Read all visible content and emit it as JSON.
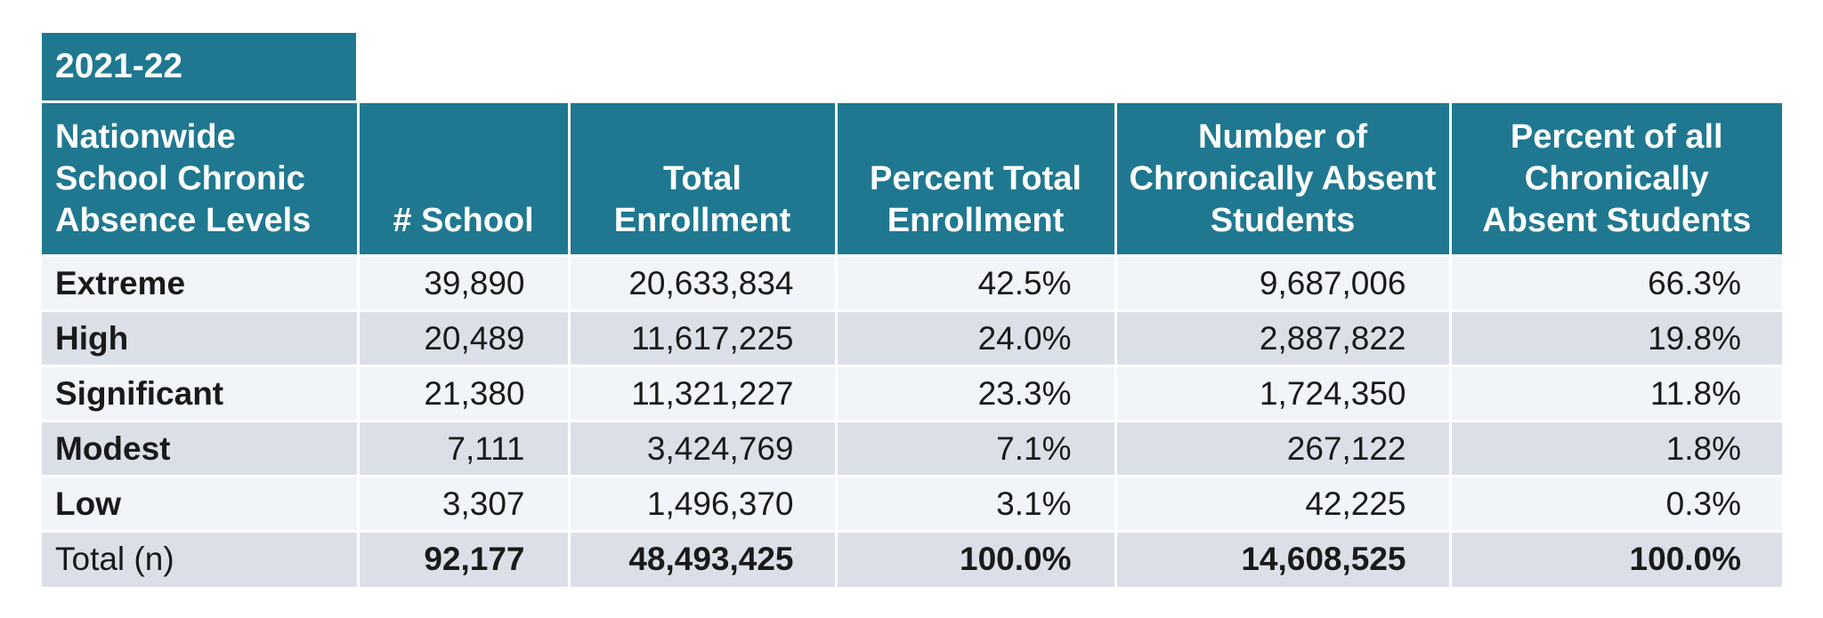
{
  "year": "2021-22",
  "headers": [
    "Nationwide School Chronic Absence Levels",
    "# School",
    "Total Enrollment",
    "Percent Total Enrollment",
    "Number of Chronically Absent Students",
    "Percent of all Chronically Absent Students"
  ],
  "rows": [
    [
      "Extreme",
      "39,890",
      "20,633,834",
      "42.5%",
      "9,687,006",
      "66.3%"
    ],
    [
      "High",
      "20,489",
      "11,617,225",
      "24.0%",
      "2,887,822",
      "19.8%"
    ],
    [
      "Significant",
      "21,380",
      "11,321,227",
      "23.3%",
      "1,724,350",
      "11.8%"
    ],
    [
      "Modest",
      "7,111",
      "3,424,769",
      "7.1%",
      "267,122",
      "1.8%"
    ],
    [
      "Low",
      "3,307",
      "1,496,370",
      "3.1%",
      "42,225",
      "0.3%"
    ],
    [
      "Total (n)",
      "92,177",
      "48,493,425",
      "100.0%",
      "14,608,525",
      "100.0%"
    ]
  ],
  "colors": {
    "header_bg": "#1f7890",
    "row_light": "#f1f4f8",
    "row_dark": "#dbe0e8"
  }
}
